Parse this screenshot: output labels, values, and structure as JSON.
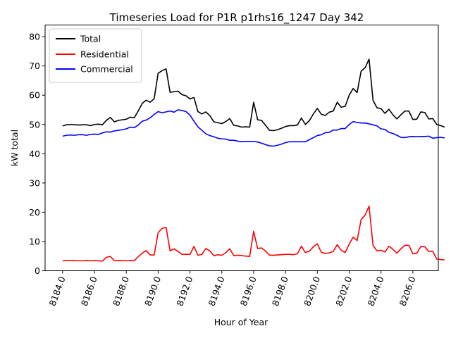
{
  "chart_data": {
    "type": "line",
    "title": "Timeseries Load for P1R p1rhs16_1247  Day 342",
    "xlabel": "Hour of Year",
    "ylabel": "kW total",
    "xlim": [
      8182.9,
      8207.6
    ],
    "ylim": [
      0,
      84
    ],
    "x_ticks": [
      8184,
      8186,
      8188,
      8190,
      8192,
      8194,
      8196,
      8198,
      8200,
      8202,
      8204,
      8206
    ],
    "x_tick_labels": [
      "8184.0",
      "8186.0",
      "8188.0",
      "8190.0",
      "8192.0",
      "8194.0",
      "8196.0",
      "8198.0",
      "8200.0",
      "8202.0",
      "8204.0",
      "8206.0"
    ],
    "y_ticks": [
      0,
      10,
      20,
      30,
      40,
      50,
      60,
      70,
      80
    ],
    "y_tick_labels": [
      "0",
      "10",
      "20",
      "30",
      "40",
      "50",
      "60",
      "70",
      "80"
    ],
    "legend_position": "upper-left",
    "grid": false,
    "x_start": 8184,
    "x_step": 0.25,
    "series": [
      {
        "name": "Total",
        "color": "#000000",
        "values": [
          49.5,
          49.9,
          50,
          49.9,
          49.8,
          49.9,
          49.9,
          49.6,
          50,
          50.1,
          49.9,
          51.4,
          52.4,
          50.9,
          51.4,
          51.6,
          51.8,
          52.5,
          52.3,
          54.6,
          57.2,
          58.3,
          57.6,
          58.8,
          67.5,
          68.4,
          69,
          61,
          61.2,
          61.4,
          60.2,
          59.8,
          58.7,
          59.2,
          54.4,
          53.6,
          54.3,
          53,
          50.9,
          50.6,
          50.3,
          51,
          52,
          49.7,
          49.5,
          49.1,
          49.2,
          49.1,
          57.6,
          51.6,
          51.4,
          49.7,
          48,
          47.9,
          48.2,
          48.7,
          49.3,
          49.6,
          49.6,
          49.8,
          52.2,
          50,
          51.3,
          53.6,
          55.5,
          53.5,
          53.1,
          54.2,
          54.6,
          57.6,
          55.9,
          56.2,
          60,
          62.3,
          60.9,
          68.2,
          69.4,
          72.3,
          58.2,
          55.7,
          55.4,
          53.8,
          55.2,
          53.3,
          51.9,
          53.3,
          54.6,
          54.6,
          51.7,
          51.8,
          54.3,
          54.1,
          51.9,
          52,
          50,
          49.6,
          49.1
        ]
      },
      {
        "name": "Residential",
        "color": "#ff0000",
        "values": [
          3.4,
          3.5,
          3.5,
          3.5,
          3.4,
          3.4,
          3.5,
          3.4,
          3.5,
          3.4,
          3.3,
          4.6,
          4.9,
          3.4,
          3.5,
          3.5,
          3.4,
          3.5,
          3.4,
          4.8,
          6,
          6.9,
          5.4,
          5.4,
          13,
          14.5,
          14.8,
          6.8,
          7.5,
          6.6,
          5.6,
          5.6,
          5.6,
          8.3,
          5.3,
          5.6,
          7.6,
          6.8,
          5.1,
          5.5,
          5.3,
          6.2,
          7.5,
          5.2,
          5.3,
          5.2,
          5,
          4.9,
          13.5,
          7.6,
          7.8,
          6.7,
          5.3,
          5.3,
          5.4,
          5.5,
          5.6,
          5.6,
          5.5,
          5.8,
          8.4,
          6.2,
          6.7,
          8.2,
          9.2,
          6.3,
          5.9,
          6.1,
          6.6,
          8.9,
          7,
          6.2,
          9.1,
          11.5,
          10.3,
          17.5,
          19,
          22.1,
          8.6,
          6.8,
          7,
          6.4,
          8.4,
          7.3,
          6,
          7.5,
          8.7,
          8.7,
          5.8,
          6,
          8.3,
          8.2,
          6.6,
          6.7,
          4,
          3.8,
          3.7
        ]
      },
      {
        "name": "Commercial",
        "color": "#0000ff",
        "values": [
          46,
          46.3,
          46.4,
          46.3,
          46.5,
          46.5,
          46.3,
          46.6,
          46.7,
          46.6,
          47.1,
          47.5,
          47.4,
          47.8,
          48,
          48.2,
          48.5,
          49.1,
          48.9,
          49.8,
          51.1,
          51.5,
          52.3,
          53.4,
          54.4,
          54,
          54.3,
          54.6,
          54.2,
          55,
          54.8,
          54.4,
          53.2,
          51.1,
          49.2,
          48,
          46.8,
          46.2,
          45.8,
          45.3,
          45.1,
          45,
          44.6,
          44.6,
          44.3,
          44.1,
          44.2,
          44.2,
          44.2,
          44,
          43.6,
          43.1,
          42.7,
          42.6,
          42.9,
          43.3,
          43.8,
          44.1,
          44.1,
          44.1,
          44.1,
          44.1,
          44.8,
          45.5,
          46.2,
          46.5,
          47.2,
          47.3,
          48.1,
          48.1,
          48.6,
          48.6,
          50,
          51,
          50.7,
          50.5,
          50.5,
          50.2,
          49.9,
          49.5,
          48.5,
          48.3,
          47.3,
          46.9,
          46.3,
          45.6,
          45.5,
          45.8,
          45.9,
          45.8,
          45.9,
          45.9,
          46,
          45.3,
          45.5,
          45.6,
          45.4
        ]
      }
    ]
  }
}
